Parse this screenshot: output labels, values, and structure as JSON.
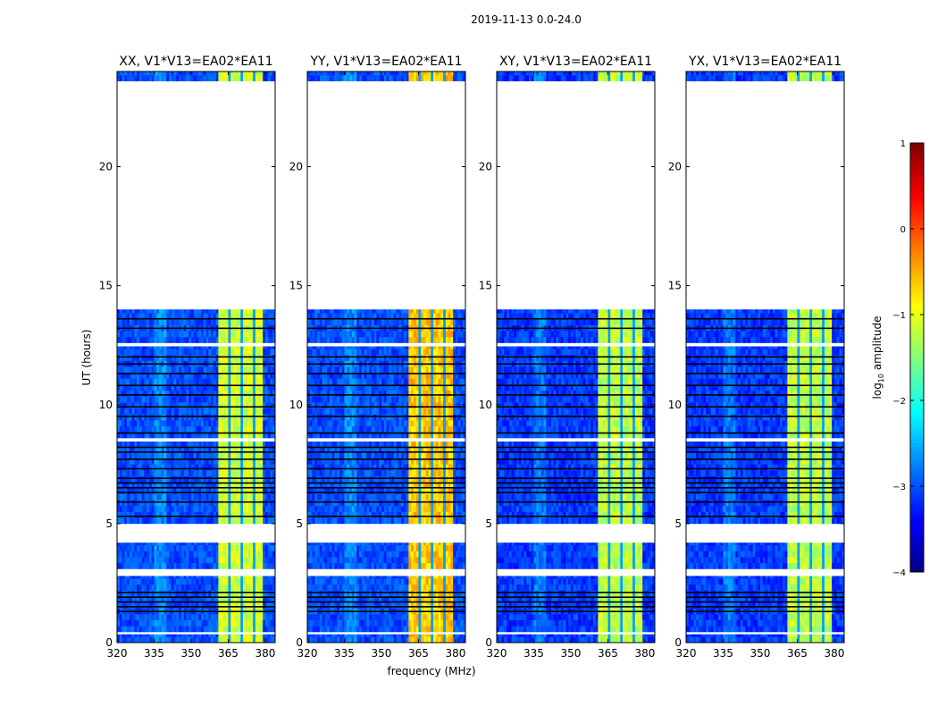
{
  "chart_data": {
    "type": "heatmap",
    "suptitle": "2019-11-13 0.0-24.0",
    "xlabel": "frequency (MHz)",
    "ylabel": "UT (hours)",
    "xlim": [
      320,
      384
    ],
    "ylim": [
      0,
      24
    ],
    "xticks": [
      "320",
      "335",
      "350",
      "365",
      "380"
    ],
    "xtick_values": [
      320,
      335,
      350,
      365,
      380
    ],
    "yticks": [
      "0",
      "5",
      "10",
      "15",
      "20"
    ],
    "ytick_values": [
      0,
      5,
      10,
      15,
      20
    ],
    "panels": [
      {
        "title": "XX, V1*V13=EA02*EA11",
        "background_log_amp": -3.0,
        "band_log_amp": -1.1
      },
      {
        "title": "YY, V1*V13=EA02*EA11",
        "background_log_amp": -3.0,
        "band_log_amp": -0.6
      },
      {
        "title": "XY, V1*V13=EA02*EA11",
        "background_log_amp": -3.1,
        "band_log_amp": -1.2
      },
      {
        "title": "YX, V1*V13=EA02*EA11",
        "background_log_amp": -3.1,
        "band_log_amp": -1.2
      }
    ],
    "data_time_segments_hours": [
      [
        0.0,
        0.35
      ],
      [
        0.45,
        2.8
      ],
      [
        3.1,
        4.2
      ],
      [
        5.0,
        8.45
      ],
      [
        8.6,
        12.45
      ],
      [
        12.6,
        14.0
      ],
      [
        23.6,
        24.0
      ]
    ],
    "bright_band_mhz": [
      360.5,
      378.5
    ],
    "band_notch_mhz": [
      365,
      370,
      375
    ],
    "flagged_rows_hours": [
      1.3,
      1.5,
      1.7,
      1.9,
      2.1,
      5.3,
      5.9,
      6.3,
      6.5,
      6.7,
      6.9,
      7.3,
      7.7,
      8.0,
      8.2,
      8.8,
      9.5,
      9.9,
      10.4,
      10.8,
      11.3,
      11.7,
      12.0,
      13.2,
      13.6
    ],
    "colorbar": {
      "label": "log",
      "label_sub": "10",
      "label_rest": " amplitude",
      "range": [
        -4,
        1
      ],
      "ticks": [
        "1",
        "0",
        "−1",
        "−2",
        "−3",
        "−4"
      ],
      "tick_values": [
        1,
        0,
        -1,
        -2,
        -3,
        -4
      ],
      "colormap": "jet"
    }
  }
}
